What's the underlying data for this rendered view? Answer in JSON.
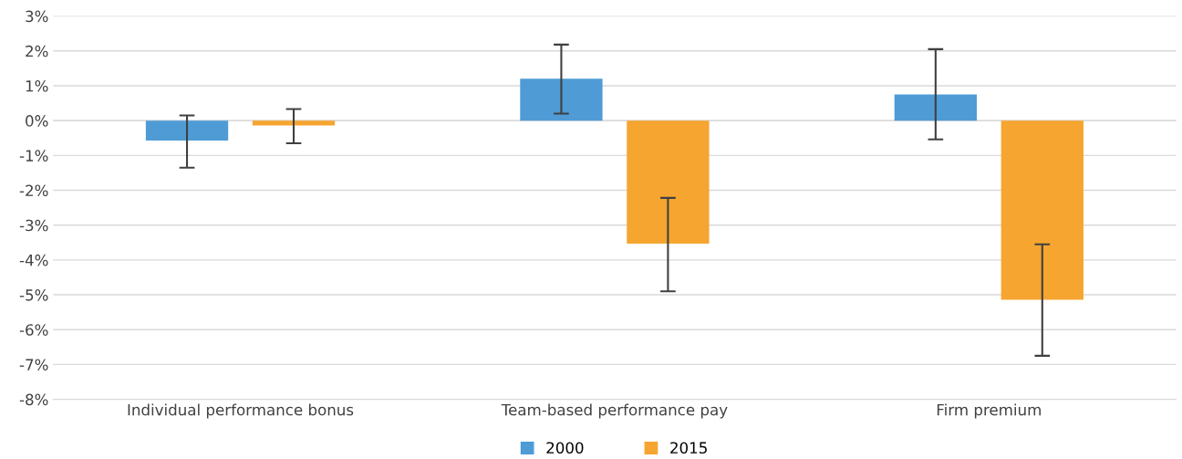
{
  "chart_data": {
    "type": "bar",
    "categories": [
      "Individual performance bonus",
      "Team-based performance pay",
      "Firm premium"
    ],
    "series": [
      {
        "name": "2000",
        "color": "#4e9bd6",
        "values": [
          -0.57,
          1.2,
          0.75
        ],
        "errors": [
          [
            -1.35,
            0.15
          ],
          [
            0.2,
            2.18
          ],
          [
            -0.54,
            2.05
          ]
        ]
      },
      {
        "name": "2015",
        "color": "#f6a530",
        "values": [
          -0.14,
          -3.53,
          -5.14
        ],
        "errors": [
          [
            -0.65,
            0.33
          ],
          [
            -4.9,
            -2.22
          ],
          [
            -6.75,
            -3.55
          ]
        ]
      }
    ],
    "ylim": [
      -8,
      3
    ],
    "yticks": [
      {
        "value": -8,
        "label": "-8%"
      },
      {
        "value": -7,
        "label": "-7%"
      },
      {
        "value": -6,
        "label": "-6%"
      },
      {
        "value": -5,
        "label": "-5%"
      },
      {
        "value": -4,
        "label": "-4%"
      },
      {
        "value": -3,
        "label": "-3%"
      },
      {
        "value": -2,
        "label": "-2%"
      },
      {
        "value": -1,
        "label": "-1%"
      },
      {
        "value": 0,
        "label": "0%"
      },
      {
        "value": 1,
        "label": "1%"
      },
      {
        "value": 2,
        "label": "2%"
      },
      {
        "value": 3,
        "label": "3%"
      }
    ],
    "grid": "y",
    "legend": "bottom"
  }
}
